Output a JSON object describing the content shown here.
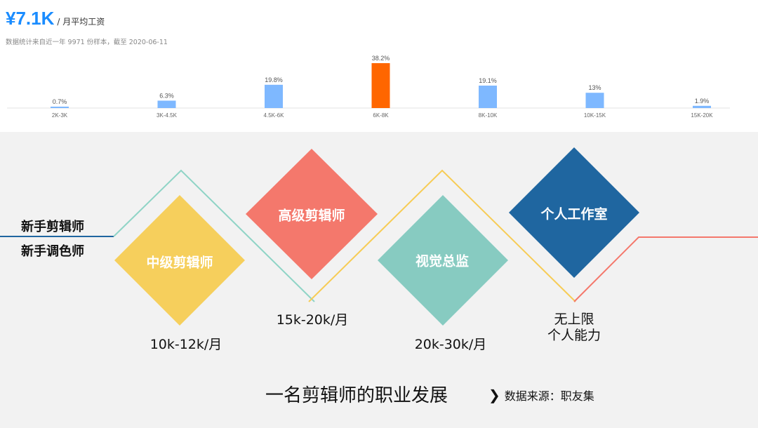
{
  "header": {
    "salary": "¥7.1K",
    "salary_unit": "/ 月平均工资",
    "note": "数据统计来自近一年 9971 份样本，截至 2020-06-11"
  },
  "chart_data": {
    "type": "bar",
    "categories": [
      "2K-3K",
      "3K-4.5K",
      "4.5K-6K",
      "6K-8K",
      "8K-10K",
      "10K-15K",
      "15K-20K"
    ],
    "values": [
      0.7,
      6.3,
      19.8,
      38.2,
      19.1,
      13,
      1.9
    ],
    "value_labels": [
      "0.7%",
      "6.3%",
      "19.8%",
      "38.2%",
      "19.1%",
      "13%",
      "1.9%"
    ],
    "highlight_index": 3,
    "colors": {
      "normal": "#7eb8ff",
      "highlight": "#ff6600"
    },
    "title": "",
    "xlabel": "",
    "ylabel": "",
    "ylim": [
      0,
      38.2
    ]
  },
  "career": {
    "entry_roles": [
      "新手剪辑师",
      "新手调色师"
    ],
    "stages": [
      {
        "title": "中级剪辑师",
        "salary": "10k-12k/月",
        "color": "#f6cf5c"
      },
      {
        "title": "高级剪辑师",
        "salary": "15k-20k/月",
        "color": "#f4786c"
      },
      {
        "title": "视觉总监",
        "salary": "20k-30k/月",
        "color": "#87cbc1"
      },
      {
        "title": "个人工作室",
        "salary_lines": [
          "无上限",
          "个人能力"
        ],
        "color": "#1f66a0"
      }
    ],
    "line_colors": [
      "#1f66a0",
      "#8fd4c6",
      "#f7cc55",
      "#f4786c"
    ],
    "caption": "一名剪辑师的职业发展",
    "source": "数据来源：职友集"
  }
}
